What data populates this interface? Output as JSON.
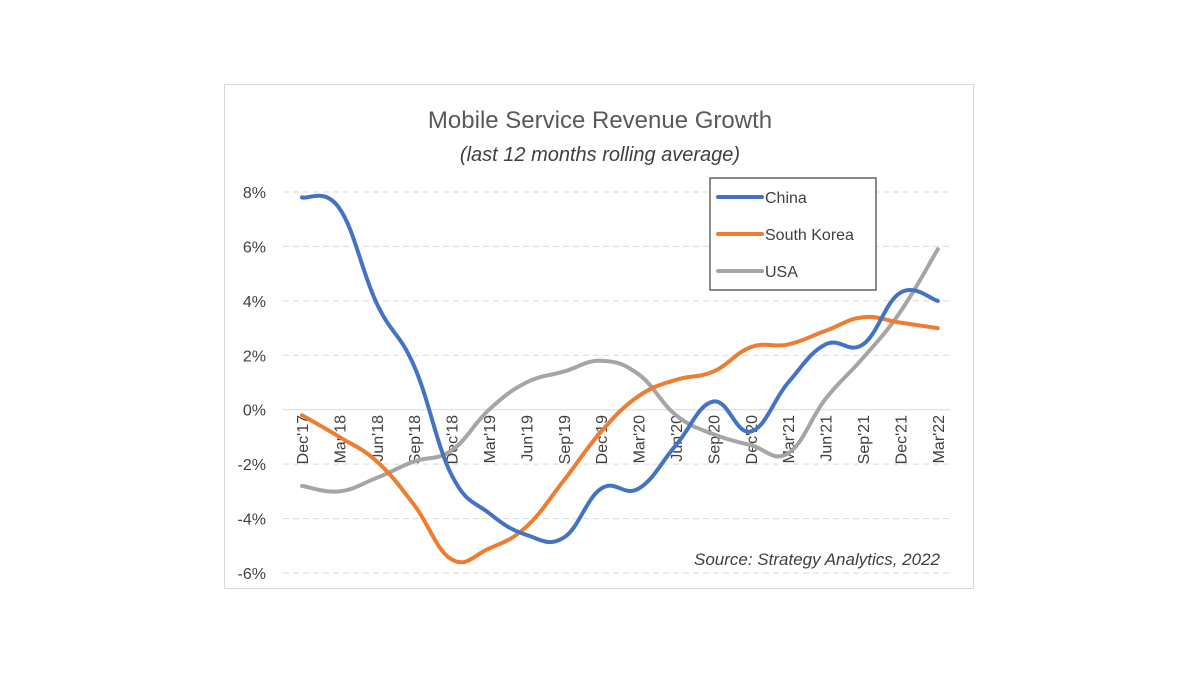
{
  "chart_data": {
    "type": "line",
    "title": "Mobile Service Revenue Growth",
    "subtitle": "(last 12 months rolling average)",
    "source": "Source: Strategy Analytics, 2022",
    "x": [
      "Dec'17",
      "Mar'18",
      "Jun'18",
      "Sep'18",
      "Dec'18",
      "Mar'19",
      "Jun'19",
      "Sep'19",
      "Dec'19",
      "Mar'20",
      "Jun'20",
      "Sep'20",
      "Dec'20",
      "Mar'21",
      "Jun'21",
      "Sep'21",
      "Dec'21",
      "Mar'22"
    ],
    "ylim": [
      -6,
      8
    ],
    "yticks": [
      -6,
      -4,
      -2,
      0,
      2,
      4,
      6,
      8
    ],
    "ytick_labels": [
      "-6%",
      "-4%",
      "-2%",
      "0%",
      "2%",
      "4%",
      "6%",
      "8%"
    ],
    "grid": true,
    "legend_position": "top-right",
    "series": [
      {
        "name": "China",
        "color": "#4472C4",
        "values": [
          7.8,
          7.4,
          3.9,
          1.6,
          -2.4,
          -3.8,
          -4.6,
          -4.7,
          -2.9,
          -2.9,
          -1.3,
          0.3,
          -0.8,
          1.0,
          2.4,
          2.4,
          4.3,
          4.0
        ]
      },
      {
        "name": "South Korea",
        "color": "#ED7D31",
        "values": [
          -0.2,
          -1.0,
          -1.9,
          -3.5,
          -5.5,
          -5.1,
          -4.3,
          -2.6,
          -0.8,
          0.5,
          1.1,
          1.4,
          2.3,
          2.4,
          2.9,
          3.4,
          3.2,
          3.0
        ]
      },
      {
        "name": "USA",
        "color": "#A5A5A5",
        "values": [
          -2.8,
          -3.0,
          -2.5,
          -1.9,
          -1.5,
          0.0,
          1.0,
          1.4,
          1.8,
          1.3,
          -0.2,
          -0.9,
          -1.3,
          -1.6,
          0.4,
          1.9,
          3.6,
          5.9
        ]
      }
    ]
  }
}
